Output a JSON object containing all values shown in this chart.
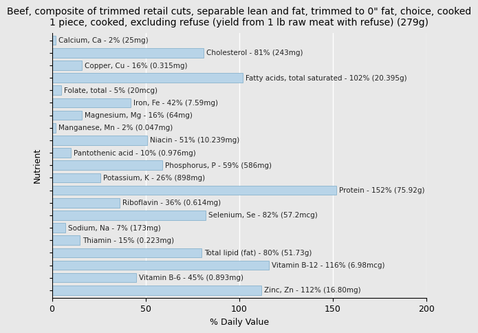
{
  "title": "Beef, composite of trimmed retail cuts, separable lean and fat, trimmed to 0\" fat, choice, cooked\n1 piece, cooked, excluding refuse (yield from 1 lb raw meat with refuse) (279g)",
  "xlabel": "% Daily Value",
  "ylabel": "Nutrient",
  "nutrients": [
    "Calcium, Ca - 2% (25mg)",
    "Cholesterol - 81% (243mg)",
    "Copper, Cu - 16% (0.315mg)",
    "Fatty acids, total saturated - 102% (20.395g)",
    "Folate, total - 5% (20mcg)",
    "Iron, Fe - 42% (7.59mg)",
    "Magnesium, Mg - 16% (64mg)",
    "Manganese, Mn - 2% (0.047mg)",
    "Niacin - 51% (10.239mg)",
    "Pantothenic acid - 10% (0.976mg)",
    "Phosphorus, P - 59% (586mg)",
    "Potassium, K - 26% (898mg)",
    "Protein - 152% (75.92g)",
    "Riboflavin - 36% (0.614mg)",
    "Selenium, Se - 82% (57.2mcg)",
    "Sodium, Na - 7% (173mg)",
    "Thiamin - 15% (0.223mg)",
    "Total lipid (fat) - 80% (51.73g)",
    "Vitamin B-12 - 116% (6.98mcg)",
    "Vitamin B-6 - 45% (0.893mg)",
    "Zinc, Zn - 112% (16.80mg)"
  ],
  "values": [
    2,
    81,
    16,
    102,
    5,
    42,
    16,
    2,
    51,
    10,
    59,
    26,
    152,
    36,
    82,
    7,
    15,
    80,
    116,
    45,
    112
  ],
  "bar_color": "#b8d4e8",
  "bar_edge_color": "#7aaac8",
  "background_color": "#e8e8e8",
  "plot_bg_color": "#e8e8e8",
  "xlim": [
    0,
    200
  ],
  "xticks": [
    0,
    50,
    100,
    150,
    200
  ],
  "title_fontsize": 10,
  "axis_label_fontsize": 9,
  "tick_fontsize": 9,
  "bar_label_fontsize": 7.5
}
